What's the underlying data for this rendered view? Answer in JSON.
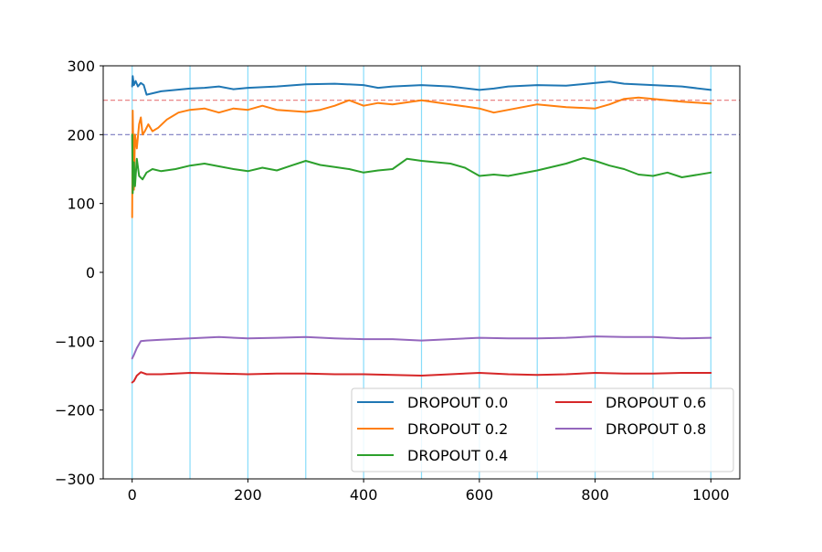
{
  "chart_data": {
    "type": "line",
    "title": "",
    "xlabel": "",
    "ylabel": "",
    "xlim": [
      -50,
      1050
    ],
    "ylim": [
      -300,
      300
    ],
    "xticks": [
      0,
      200,
      400,
      600,
      800,
      1000
    ],
    "xtick_labels": [
      "0",
      "200",
      "400",
      "600",
      "800",
      "1000"
    ],
    "yticks": [
      -300,
      -200,
      -100,
      0,
      100,
      200,
      300
    ],
    "ytick_labels": [
      "−300",
      "−200",
      "−100",
      "0",
      "100",
      "200",
      "300"
    ],
    "vlines": [
      0,
      100,
      200,
      300,
      400,
      500,
      600,
      700,
      800,
      900,
      1000
    ],
    "vline_color": "#87dcfa",
    "hlines": [
      {
        "y": 250,
        "color": "#e8787a"
      },
      {
        "y": 200,
        "color": "#7a7ac0"
      }
    ],
    "grid": false,
    "legend_position": "lower right",
    "series": [
      {
        "name": "DROPOUT 0.0",
        "color": "#1f77b4",
        "points": [
          [
            0,
            270
          ],
          [
            1,
            285
          ],
          [
            3,
            272
          ],
          [
            6,
            278
          ],
          [
            10,
            270
          ],
          [
            15,
            275
          ],
          [
            20,
            272
          ],
          [
            25,
            258
          ],
          [
            35,
            260
          ],
          [
            50,
            263
          ],
          [
            75,
            265
          ],
          [
            100,
            267
          ],
          [
            125,
            268
          ],
          [
            150,
            270
          ],
          [
            175,
            266
          ],
          [
            200,
            268
          ],
          [
            250,
            270
          ],
          [
            300,
            273
          ],
          [
            350,
            274
          ],
          [
            400,
            272
          ],
          [
            425,
            268
          ],
          [
            450,
            270
          ],
          [
            500,
            272
          ],
          [
            550,
            270
          ],
          [
            600,
            265
          ],
          [
            625,
            267
          ],
          [
            650,
            270
          ],
          [
            700,
            272
          ],
          [
            750,
            271
          ],
          [
            800,
            275
          ],
          [
            825,
            277
          ],
          [
            850,
            274
          ],
          [
            900,
            272
          ],
          [
            950,
            270
          ],
          [
            1000,
            265
          ]
        ]
      },
      {
        "name": "DROPOUT 0.2",
        "color": "#ff7f0e",
        "points": [
          [
            0,
            80
          ],
          [
            1,
            235
          ],
          [
            3,
            120
          ],
          [
            5,
            200
          ],
          [
            8,
            180
          ],
          [
            12,
            215
          ],
          [
            15,
            225
          ],
          [
            18,
            200
          ],
          [
            22,
            205
          ],
          [
            28,
            215
          ],
          [
            35,
            205
          ],
          [
            45,
            210
          ],
          [
            60,
            222
          ],
          [
            80,
            232
          ],
          [
            100,
            236
          ],
          [
            125,
            238
          ],
          [
            150,
            232
          ],
          [
            175,
            238
          ],
          [
            200,
            236
          ],
          [
            225,
            242
          ],
          [
            250,
            236
          ],
          [
            300,
            233
          ],
          [
            325,
            236
          ],
          [
            350,
            242
          ],
          [
            375,
            250
          ],
          [
            400,
            242
          ],
          [
            425,
            246
          ],
          [
            450,
            244
          ],
          [
            500,
            250
          ],
          [
            550,
            244
          ],
          [
            600,
            238
          ],
          [
            625,
            232
          ],
          [
            650,
            236
          ],
          [
            700,
            244
          ],
          [
            750,
            240
          ],
          [
            800,
            238
          ],
          [
            825,
            244
          ],
          [
            850,
            252
          ],
          [
            875,
            254
          ],
          [
            900,
            252
          ],
          [
            950,
            248
          ],
          [
            1000,
            245
          ]
        ]
      },
      {
        "name": "DROPOUT 0.4",
        "color": "#2ca02c",
        "points": [
          [
            0,
            200
          ],
          [
            1,
            115
          ],
          [
            3,
            160
          ],
          [
            5,
            125
          ],
          [
            8,
            165
          ],
          [
            12,
            140
          ],
          [
            18,
            135
          ],
          [
            25,
            145
          ],
          [
            35,
            150
          ],
          [
            50,
            147
          ],
          [
            75,
            150
          ],
          [
            100,
            155
          ],
          [
            125,
            158
          ],
          [
            150,
            154
          ],
          [
            175,
            150
          ],
          [
            200,
            147
          ],
          [
            225,
            152
          ],
          [
            250,
            148
          ],
          [
            275,
            155
          ],
          [
            300,
            162
          ],
          [
            325,
            156
          ],
          [
            350,
            153
          ],
          [
            375,
            150
          ],
          [
            400,
            145
          ],
          [
            425,
            148
          ],
          [
            450,
            150
          ],
          [
            475,
            165
          ],
          [
            500,
            162
          ],
          [
            550,
            158
          ],
          [
            575,
            152
          ],
          [
            600,
            140
          ],
          [
            625,
            142
          ],
          [
            650,
            140
          ],
          [
            700,
            148
          ],
          [
            750,
            158
          ],
          [
            780,
            166
          ],
          [
            800,
            162
          ],
          [
            825,
            155
          ],
          [
            850,
            150
          ],
          [
            875,
            142
          ],
          [
            900,
            140
          ],
          [
            925,
            145
          ],
          [
            950,
            138
          ],
          [
            1000,
            145
          ]
        ]
      },
      {
        "name": "DROPOUT 0.6",
        "color": "#d62728",
        "points": [
          [
            0,
            -160
          ],
          [
            3,
            -158
          ],
          [
            8,
            -150
          ],
          [
            15,
            -145
          ],
          [
            25,
            -148
          ],
          [
            50,
            -148
          ],
          [
            100,
            -146
          ],
          [
            150,
            -147
          ],
          [
            200,
            -148
          ],
          [
            250,
            -147
          ],
          [
            300,
            -147
          ],
          [
            350,
            -148
          ],
          [
            400,
            -148
          ],
          [
            450,
            -149
          ],
          [
            500,
            -150
          ],
          [
            550,
            -148
          ],
          [
            600,
            -146
          ],
          [
            650,
            -148
          ],
          [
            700,
            -149
          ],
          [
            750,
            -148
          ],
          [
            800,
            -146
          ],
          [
            850,
            -147
          ],
          [
            900,
            -147
          ],
          [
            950,
            -146
          ],
          [
            1000,
            -146
          ]
        ]
      },
      {
        "name": "DROPOUT 0.8",
        "color": "#9467bd",
        "points": [
          [
            0,
            -125
          ],
          [
            3,
            -120
          ],
          [
            8,
            -110
          ],
          [
            15,
            -100
          ],
          [
            25,
            -99
          ],
          [
            50,
            -98
          ],
          [
            100,
            -96
          ],
          [
            150,
            -94
          ],
          [
            200,
            -96
          ],
          [
            250,
            -95
          ],
          [
            300,
            -94
          ],
          [
            350,
            -96
          ],
          [
            400,
            -97
          ],
          [
            450,
            -97
          ],
          [
            500,
            -99
          ],
          [
            550,
            -97
          ],
          [
            600,
            -95
          ],
          [
            650,
            -96
          ],
          [
            700,
            -96
          ],
          [
            750,
            -95
          ],
          [
            800,
            -93
          ],
          [
            850,
            -94
          ],
          [
            900,
            -94
          ],
          [
            950,
            -96
          ],
          [
            1000,
            -95
          ]
        ]
      }
    ]
  }
}
